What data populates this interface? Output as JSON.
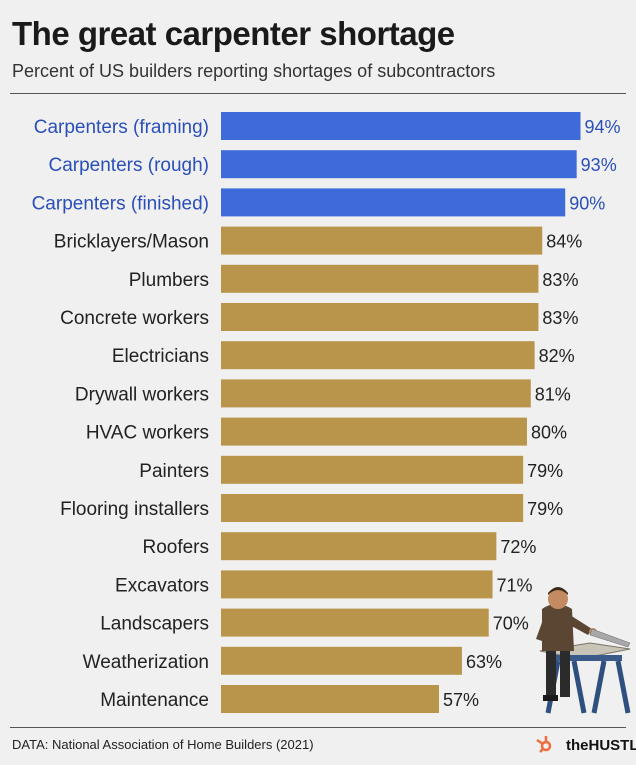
{
  "header": {
    "title": "The great carpenter shortage",
    "subtitle": "Percent of US builders reporting shortages of subcontractors"
  },
  "footer": {
    "source": "DATA: National Association of Home Builders (2021)",
    "brand": "theHUSTLE"
  },
  "colors": {
    "highlight": "#3d6bd9",
    "default": "#b8954a",
    "highlight_text": "#2a4fb8",
    "default_text": "#222222"
  },
  "chart_data": {
    "type": "bar",
    "orientation": "horizontal",
    "categories": [
      "Carpenters (framing)",
      "Carpenters (rough)",
      "Carpenters (finished)",
      "Bricklayers/Mason",
      "Plumbers",
      "Concrete workers",
      "Electricians",
      "Drywall workers",
      "HVAC workers",
      "Painters",
      "Flooring installers",
      "Roofers",
      "Excavators",
      "Landscapers",
      "Weatherization",
      "Maintenance"
    ],
    "values": [
      94,
      93,
      90,
      84,
      83,
      83,
      82,
      81,
      80,
      79,
      79,
      72,
      71,
      70,
      63,
      57
    ],
    "value_labels": [
      "94%",
      "93%",
      "90%",
      "84%",
      "83%",
      "83%",
      "82%",
      "81%",
      "80%",
      "79%",
      "79%",
      "72%",
      "71%",
      "70%",
      "63%",
      "57%"
    ],
    "highlighted": [
      true,
      true,
      true,
      false,
      false,
      false,
      false,
      false,
      false,
      false,
      false,
      false,
      false,
      false,
      false,
      false
    ],
    "xlim": [
      0,
      100
    ],
    "grid": false,
    "title": "The great carpenter shortage",
    "xlabel": "",
    "ylabel": ""
  }
}
